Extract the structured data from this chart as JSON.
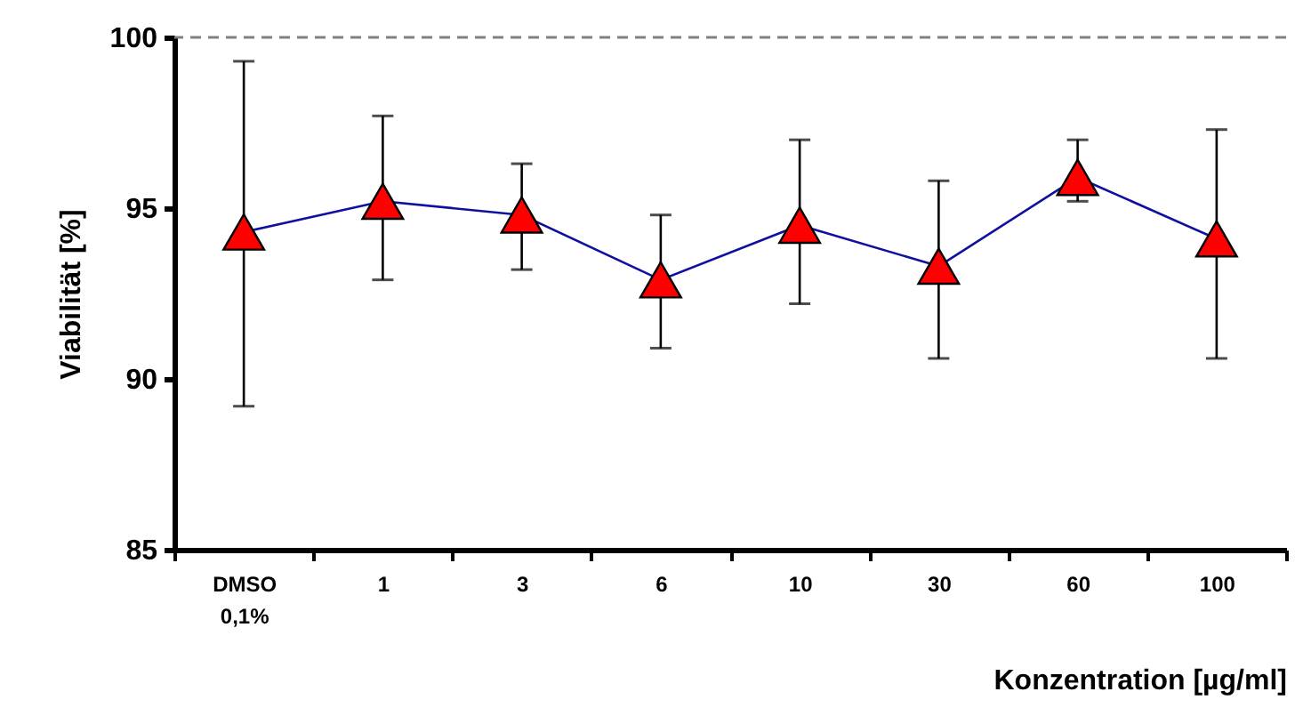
{
  "chart_data": {
    "type": "line",
    "xlabel": "Konzentration [µg/ml]",
    "ylabel": "Viabilität [%]",
    "categories": [
      "DMSO 0,1%",
      "1",
      "3",
      "6",
      "10",
      "30",
      "60",
      "100"
    ],
    "series": [
      {
        "color": "#ff0000",
        "values": [
          94.3,
          95.2,
          94.8,
          92.9,
          94.5,
          93.3,
          95.9,
          94.1
        ],
        "errors": [
          [
            89.2,
            99.3
          ],
          [
            92.9,
            97.7
          ],
          [
            93.2,
            96.3
          ],
          [
            90.9,
            94.8
          ],
          [
            92.2,
            97.0
          ],
          [
            90.6,
            95.8
          ],
          [
            95.2,
            97.0
          ],
          [
            90.6,
            97.3
          ]
        ]
      }
    ],
    "ylim": [
      85,
      100
    ],
    "yticks": [
      85,
      90,
      95,
      100
    ],
    "ref_lines": [
      {
        "axis": "y",
        "value": 100,
        "color": "#808080",
        "line_style": "dashed"
      }
    ],
    "marker": "triangle",
    "line_style": "solid",
    "grid": false
  }
}
